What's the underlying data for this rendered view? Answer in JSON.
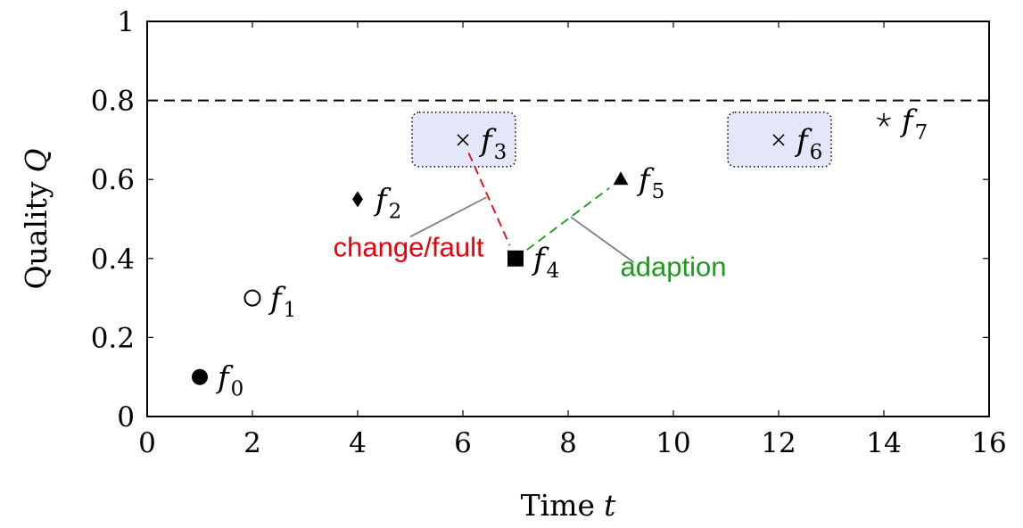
{
  "chart_data": {
    "type": "scatter",
    "title": "",
    "xlabel": "Time",
    "xlabel_var": "t",
    "ylabel": "Quality",
    "ylabel_var": "Q",
    "xlim": [
      0,
      16
    ],
    "ylim": [
      0,
      1
    ],
    "x_ticks": [
      0,
      2,
      4,
      6,
      8,
      10,
      12,
      14,
      16
    ],
    "y_ticks": [
      0,
      0.2,
      0.4,
      0.6,
      0.8,
      1
    ],
    "y_tick_labels": [
      "0",
      "0.2",
      "0.4",
      "0.6",
      "0.8",
      "1"
    ],
    "grid": false,
    "threshold": {
      "y": 0.8,
      "style": "dashed",
      "color": "#000000"
    },
    "points": [
      {
        "label": "f",
        "sub": "0",
        "x": 1,
        "y": 0.1,
        "marker": "filled-circle"
      },
      {
        "label": "f",
        "sub": "1",
        "x": 2,
        "y": 0.3,
        "marker": "open-circle"
      },
      {
        "label": "f",
        "sub": "2",
        "x": 4,
        "y": 0.55,
        "marker": "diamond"
      },
      {
        "label": "f",
        "sub": "3",
        "x": 6,
        "y": 0.7,
        "marker": "x",
        "highlighted": true
      },
      {
        "label": "f",
        "sub": "4",
        "x": 7,
        "y": 0.4,
        "marker": "square"
      },
      {
        "label": "f",
        "sub": "5",
        "x": 9,
        "y": 0.6,
        "marker": "triangle"
      },
      {
        "label": "f",
        "sub": "6",
        "x": 12,
        "y": 0.7,
        "marker": "x",
        "highlighted": true
      },
      {
        "label": "f",
        "sub": "7",
        "x": 14,
        "y": 0.75,
        "marker": "star"
      }
    ],
    "connections": [
      {
        "from": 3,
        "to": 4,
        "color": "#e8000b",
        "style": "dashed"
      },
      {
        "from": 4,
        "to": 5,
        "color": "#1a9a1a",
        "style": "dashed"
      }
    ],
    "annotations": [
      {
        "text": "change/fault",
        "color": "#e8000b",
        "text_x": 6.4,
        "text_y": 0.405,
        "pointer_from": [
          5.0,
          0.455
        ],
        "pointer_to": [
          6.45,
          0.555
        ]
      },
      {
        "text": "adaption",
        "color": "#1a9a1a",
        "text_x": 10.0,
        "text_y": 0.355,
        "pointer_from": [
          9.25,
          0.39
        ],
        "pointer_to": [
          8.05,
          0.505
        ]
      }
    ],
    "highlight_color": "#e6e6fa"
  }
}
